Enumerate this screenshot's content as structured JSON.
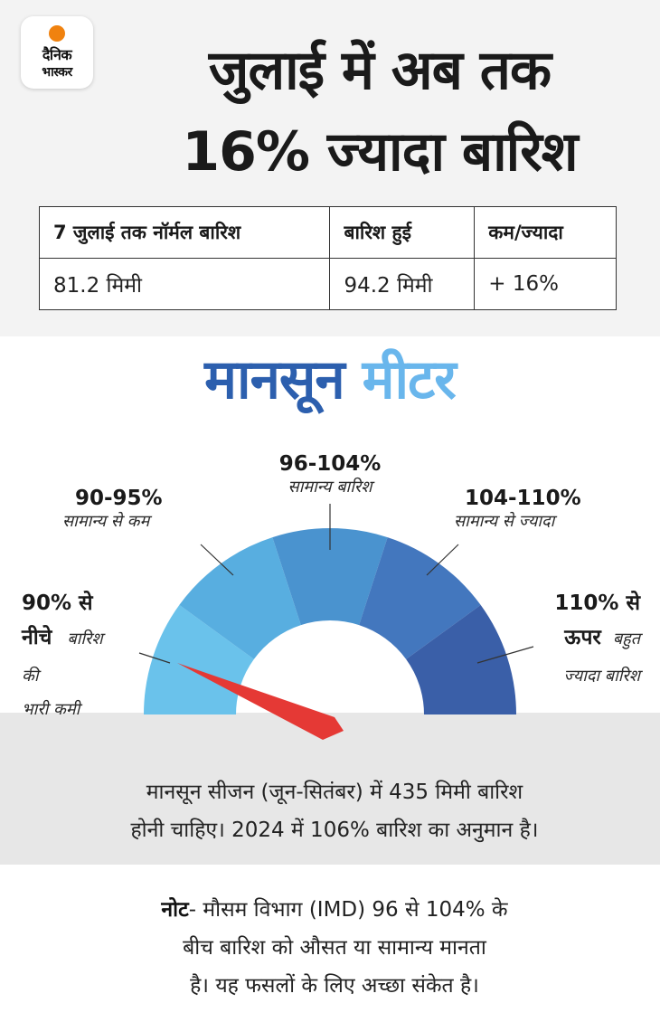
{
  "logo": {
    "line1": "दैनिक",
    "line2": "भास्कर",
    "accent_color": "#f0820f"
  },
  "headline": {
    "line1": "जुलाई में अब तक",
    "line2": "16% ज्यादा बारिश"
  },
  "rain_table": {
    "headers": [
      "7 जुलाई तक नॉर्मल बारिश",
      "बारिश हुई",
      "कम/ज्यादा"
    ],
    "values": [
      "81.2 मिमी",
      "94.2 मिमी",
      "+ 16%"
    ]
  },
  "meter_title": {
    "part1": "मानसून",
    "part2": "मीटर",
    "color1": "#2c5fae",
    "color2": "#69b6ec"
  },
  "gauge": {
    "segments": [
      {
        "range_line1": "90% से",
        "range_line2": "नीचे",
        "desc": "बारिश की भारी कमी",
        "desc_part1": "बारिश",
        "desc_part2": "की",
        "desc_part3": "भारी कमी",
        "color": "#6ac2eb"
      },
      {
        "range": "90-95%",
        "desc": "सामान्य से कम",
        "color": "#58aee0"
      },
      {
        "range": "96-104%",
        "desc": "सामान्य बारिश",
        "color": "#4a93cf"
      },
      {
        "range": "104-110%",
        "desc": "सामान्य से ज्यादा",
        "color": "#4377be"
      },
      {
        "range_line1": "110% से",
        "range_line2": "ऊपर",
        "desc": "बहुत ज्यादा बारिश",
        "desc_part1": "बहुत",
        "desc_part2": "ज्यादा बारिश",
        "color": "#3a5fa8"
      }
    ],
    "needle_color": "#e53935"
  },
  "info": {
    "line1": "मानसून सीजन (जून-सितंबर) में 435 मिमी बारिश",
    "line2": "होनी चाहिए। 2024 में 106% बारिश का अनुमान है।"
  },
  "note": {
    "label": "नोट",
    "line1": "- मौसम विभाग (IMD) 96 से 104% के",
    "line2": "बीच बारिश को औसत या सामान्य मानता",
    "line3": "है। यह फसलों के लिए अच्छा संकेत है।"
  }
}
